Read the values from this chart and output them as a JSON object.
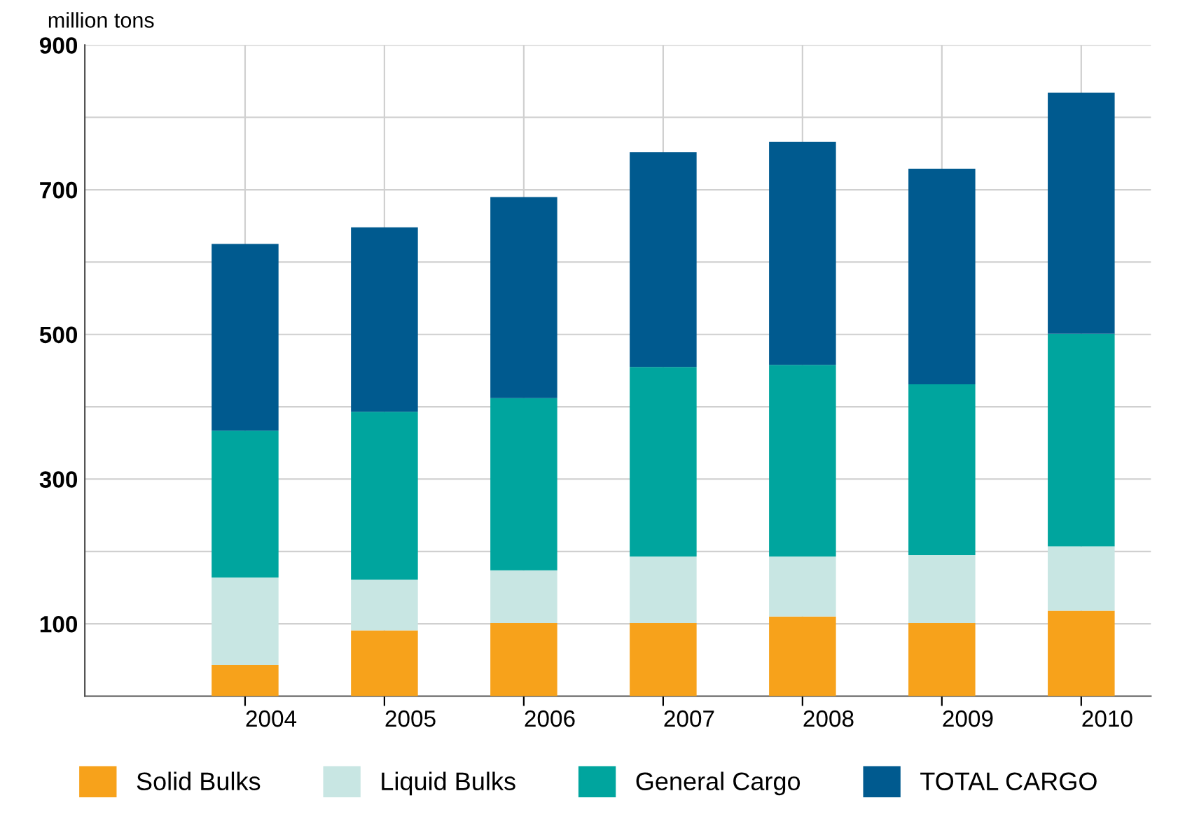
{
  "chart_data": {
    "type": "bar",
    "stacked": true,
    "ylabel": "million tons",
    "categories": [
      "2004",
      "2005",
      "2006",
      "2007",
      "2008",
      "2009",
      "2010"
    ],
    "series": [
      {
        "name": "Solid Bulks",
        "color": "#f7a21b",
        "values": [
          43,
          91,
          101,
          101,
          110,
          101,
          118
        ]
      },
      {
        "name": "Liquid Bulks",
        "color": "#c8e6e3",
        "values": [
          121,
          70,
          73,
          92,
          83,
          94,
          89
        ]
      },
      {
        "name": "General Cargo",
        "color": "#00a59e",
        "values": [
          203,
          232,
          238,
          262,
          265,
          236,
          294
        ]
      },
      {
        "name": "TOTAL CARGO",
        "color": "#005a8f",
        "values": [
          258,
          255,
          278,
          297,
          308,
          298,
          333
        ]
      }
    ],
    "ylim": [
      0,
      900
    ],
    "yticks": [
      100,
      {
        "value": 200,
        "label": null
      },
      300,
      {
        "value": 400,
        "label": null
      },
      500,
      {
        "value": 600,
        "label": null
      },
      700,
      {
        "value": 800,
        "label": null
      },
      900
    ],
    "grid": true,
    "legend": "bottom"
  }
}
